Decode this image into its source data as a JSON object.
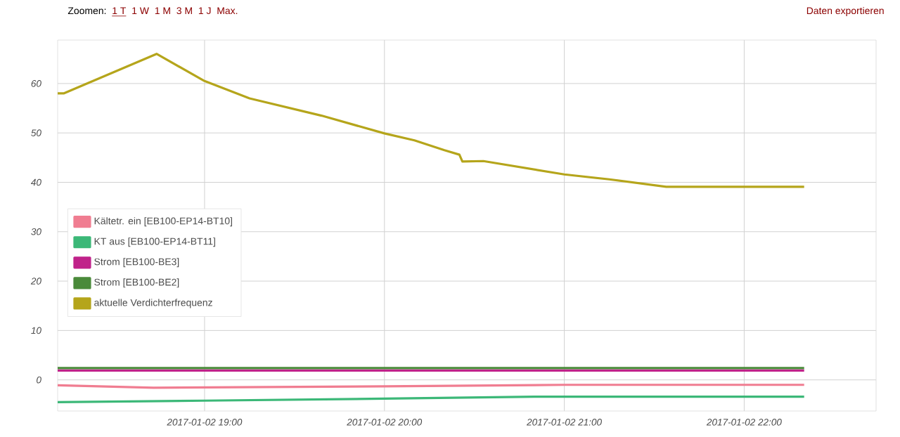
{
  "chart_data": {
    "type": "line",
    "annotations": [
      "Zoomen:",
      "1 T",
      "1 W",
      "1 M",
      "3 M",
      "1 J",
      "Max.",
      "Daten exportieren"
    ],
    "xlim": [
      "2017-01-02T18:11",
      "2017-01-02T22:44"
    ],
    "xticks": [
      {
        "value": "2017-01-02T19:00",
        "label": "2017-01-02 19:00"
      },
      {
        "value": "2017-01-02T20:00",
        "label": "2017-01-02 20:00"
      },
      {
        "value": "2017-01-02T21:00",
        "label": "2017-01-02 21:00"
      },
      {
        "value": "2017-01-02T22:00",
        "label": "2017-01-02 22:00"
      }
    ],
    "ylim": [
      -6.3,
      68.8
    ],
    "yticks": [
      0,
      10,
      20,
      30,
      40,
      50,
      60
    ],
    "grid": true,
    "legend": "left",
    "marker": "none",
    "line_style": "solid",
    "series": [
      {
        "name": "Kältetr. ein [EB100-EP14-BT10]",
        "color": "#f07d91",
        "x": [
          "2017-01-02T18:11",
          "2017-01-02T18:43",
          "2017-01-02T20:00",
          "2017-01-02T21:00",
          "2017-01-02T22:20"
        ],
        "values": [
          -1.1,
          -1.6,
          -1.3,
          -1.0,
          -1.0
        ]
      },
      {
        "name": "KT aus [EB100-EP14-BT11]",
        "color": "#3cb878",
        "x": [
          "2017-01-02T18:11",
          "2017-01-02T19:00",
          "2017-01-02T20:00",
          "2017-01-02T20:50",
          "2017-01-02T22:20"
        ],
        "values": [
          -4.5,
          -4.2,
          -3.8,
          -3.4,
          -3.4
        ]
      },
      {
        "name": "Strom [EB100-BE3]",
        "color": "#c0228a",
        "x": [
          "2017-01-02T18:11",
          "2017-01-02T22:20"
        ],
        "values": [
          1.9,
          1.9
        ]
      },
      {
        "name": "Strom [EB100-BE2]",
        "color": "#4a8a3a",
        "x": [
          "2017-01-02T18:11",
          "2017-01-02T22:20"
        ],
        "values": [
          2.4,
          2.4
        ]
      },
      {
        "name": "aktuelle Verdichterfrequenz",
        "color": "#b5a51b",
        "x": [
          "2017-01-02T18:11",
          "2017-01-02T18:13",
          "2017-01-02T18:44",
          "2017-01-02T19:00",
          "2017-01-02T19:15",
          "2017-01-02T19:39",
          "2017-01-02T20:00",
          "2017-01-02T20:10",
          "2017-01-02T20:20",
          "2017-01-02T20:25",
          "2017-01-02T20:26",
          "2017-01-02T20:33",
          "2017-01-02T21:00",
          "2017-01-02T21:15",
          "2017-01-02T21:34",
          "2017-01-02T22:20"
        ],
        "values": [
          58.0,
          58.0,
          66.0,
          60.5,
          57.0,
          53.5,
          49.9,
          48.5,
          46.5,
          45.6,
          44.2,
          44.3,
          41.6,
          40.6,
          39.1,
          39.1
        ]
      }
    ]
  }
}
